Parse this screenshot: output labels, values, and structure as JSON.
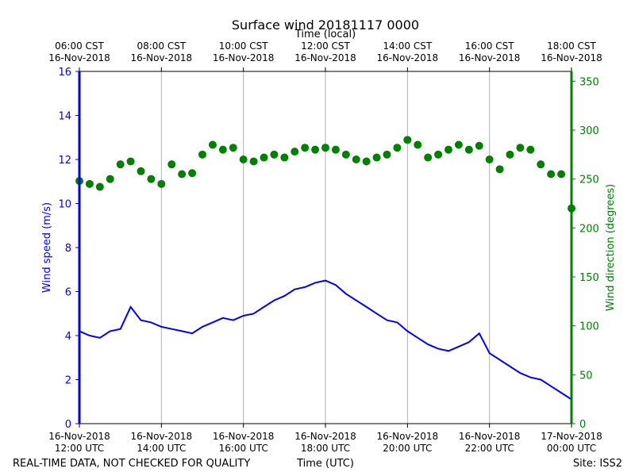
{
  "chart_data": {
    "type": "line",
    "title": "Surface wind 20181117 0000",
    "top_axis_label": "Time (local)",
    "xlabel": "Time (UTC)",
    "ylabel_left": "Wind speed (m/s)",
    "ylabel_right": "Wind direction (degrees)",
    "ylim_left": [
      0,
      16
    ],
    "ylim_right": [
      0,
      360
    ],
    "yticks_left": [
      "0",
      "2",
      "4",
      "6",
      "8",
      "10",
      "12",
      "14",
      "16"
    ],
    "yticks_right": [
      "0",
      "50",
      "100",
      "150",
      "200",
      "250",
      "300",
      "350"
    ],
    "x_start": "2018-11-16 12:00 UTC",
    "x_end": "2018-11-17 00:00 UTC",
    "bottom_ticks": [
      {
        "date": "16-Nov-2018",
        "time": "12:00 UTC"
      },
      {
        "date": "16-Nov-2018",
        "time": "14:00 UTC"
      },
      {
        "date": "16-Nov-2018",
        "time": "16:00 UTC"
      },
      {
        "date": "16-Nov-2018",
        "time": "18:00 UTC"
      },
      {
        "date": "16-Nov-2018",
        "time": "20:00 UTC"
      },
      {
        "date": "16-Nov-2018",
        "time": "22:00 UTC"
      },
      {
        "date": "17-Nov-2018",
        "time": "00:00 UTC"
      }
    ],
    "top_ticks": [
      {
        "time": "06:00 CST",
        "date": "16-Nov-2018"
      },
      {
        "time": "08:00 CST",
        "date": "16-Nov-2018"
      },
      {
        "time": "10:00 CST",
        "date": "16-Nov-2018"
      },
      {
        "time": "12:00 CST",
        "date": "16-Nov-2018"
      },
      {
        "time": "14:00 CST",
        "date": "16-Nov-2018"
      },
      {
        "time": "16:00 CST",
        "date": "16-Nov-2018"
      },
      {
        "time": "18:00 CST",
        "date": "16-Nov-2018"
      }
    ],
    "grid": "vertical",
    "series": [
      {
        "axis": "left",
        "style": "line",
        "color": "#0000ff",
        "x": [
          "12:00",
          "12:15",
          "12:30",
          "12:45",
          "13:00",
          "13:15",
          "13:30",
          "13:45",
          "14:00",
          "14:15",
          "14:30",
          "14:45",
          "15:00",
          "15:15",
          "15:30",
          "15:45",
          "16:00",
          "16:15",
          "16:30",
          "16:45",
          "17:00",
          "17:15",
          "17:30",
          "17:45",
          "18:00",
          "18:15",
          "18:30",
          "18:45",
          "19:00",
          "19:15",
          "19:30",
          "19:45",
          "20:00",
          "20:15",
          "20:30",
          "20:45",
          "21:00",
          "21:15",
          "21:30",
          "21:45",
          "22:00",
          "22:15",
          "22:30",
          "22:45",
          "23:00",
          "23:15",
          "23:30",
          "23:45",
          "24:00"
        ],
        "values": [
          4.2,
          4.0,
          3.9,
          4.2,
          4.3,
          5.3,
          4.7,
          4.6,
          4.4,
          4.3,
          4.2,
          4.1,
          4.4,
          4.6,
          4.8,
          4.7,
          4.9,
          5.0,
          5.3,
          5.6,
          5.8,
          6.1,
          6.2,
          6.4,
          6.5,
          6.3,
          5.9,
          5.6,
          5.3,
          5.0,
          4.7,
          4.6,
          4.2,
          3.9,
          3.6,
          3.4,
          3.3,
          3.5,
          3.7,
          4.1,
          3.2,
          2.9,
          2.6,
          2.3,
          2.1,
          2.0,
          1.7,
          1.4,
          1.1
        ]
      },
      {
        "axis": "right",
        "style": "markers",
        "color": "#008000",
        "x": [
          "12:00",
          "12:15",
          "12:30",
          "12:45",
          "13:00",
          "13:15",
          "13:30",
          "13:45",
          "14:00",
          "14:15",
          "14:30",
          "14:45",
          "15:00",
          "15:15",
          "15:30",
          "15:45",
          "16:00",
          "16:15",
          "16:30",
          "16:45",
          "17:00",
          "17:15",
          "17:30",
          "17:45",
          "18:00",
          "18:15",
          "18:30",
          "18:45",
          "19:00",
          "19:15",
          "19:30",
          "19:45",
          "20:00",
          "20:15",
          "20:30",
          "20:45",
          "21:00",
          "21:15",
          "21:30",
          "21:45",
          "22:00",
          "22:15",
          "22:30",
          "22:45",
          "23:00",
          "23:15",
          "23:30",
          "23:45",
          "24:00"
        ],
        "values": [
          248,
          245,
          242,
          250,
          265,
          268,
          258,
          250,
          245,
          265,
          255,
          256,
          275,
          285,
          280,
          282,
          270,
          268,
          272,
          275,
          272,
          278,
          282,
          280,
          282,
          280,
          275,
          270,
          268,
          272,
          275,
          282,
          290,
          285,
          272,
          275,
          280,
          285,
          280,
          284,
          270,
          260,
          275,
          282,
          280,
          265,
          255,
          255,
          220
        ]
      }
    ]
  },
  "footer": {
    "left": "REAL-TIME DATA, NOT CHECKED FOR QUALITY",
    "center": "Time (UTC)",
    "right": "Site: ISS2"
  },
  "colors": {
    "speed": "#0000ff",
    "direction": "#008000",
    "grid": "#b0b0b0"
  }
}
